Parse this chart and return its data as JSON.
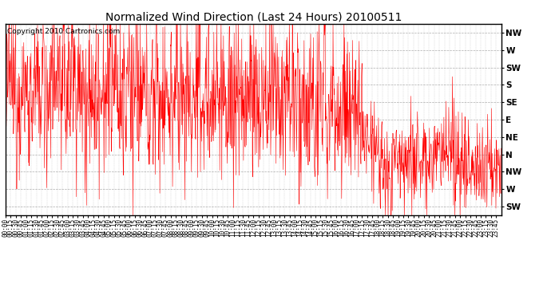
{
  "title": "Normalized Wind Direction (Last 24 Hours) 20100511",
  "copyright": "Copyright 2010 Cartronics.com",
  "y_labels": [
    "SW",
    "W",
    "NW",
    "N",
    "NE",
    "E",
    "SE",
    "S",
    "SW",
    "W",
    "NW"
  ],
  "y_values": [
    -1,
    0,
    1,
    2,
    3,
    4,
    5,
    6,
    7,
    8,
    9
  ],
  "y_lim": [
    -1.5,
    9.5
  ],
  "line_color": "#ff0000",
  "background_color": "#ffffff",
  "grid_color": "#999999",
  "title_fontsize": 10,
  "copyright_fontsize": 6.5,
  "x_label_fontsize": 5.5,
  "y_label_fontsize": 7.5
}
